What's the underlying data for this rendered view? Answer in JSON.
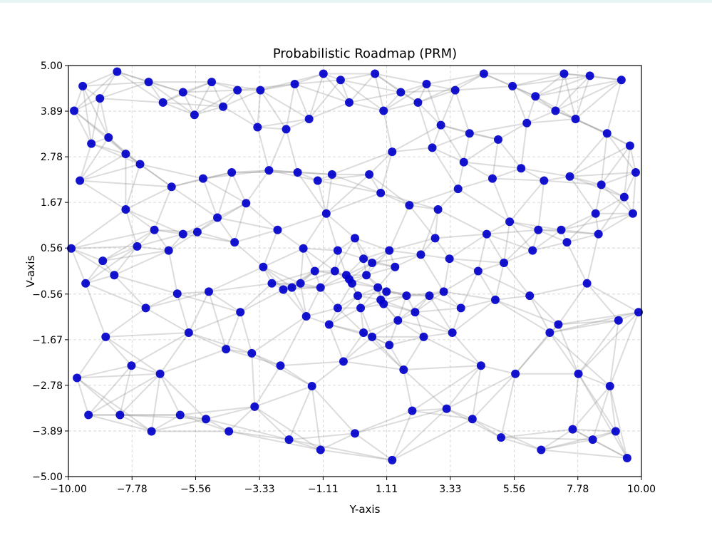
{
  "chart_data": {
    "type": "scatter",
    "title": "Probabilistic Roadmap (PRM)",
    "xlabel": "Y-axis",
    "ylabel": "V-axis",
    "xlim": [
      -10,
      10
    ],
    "ylim": [
      -5,
      5
    ],
    "xticks": [
      -10.0,
      -7.78,
      -5.56,
      -3.33,
      -1.11,
      1.11,
      3.33,
      5.56,
      7.78,
      10.0
    ],
    "yticks": [
      -5.0,
      -3.89,
      -2.78,
      -1.67,
      -0.56,
      0.56,
      1.67,
      2.78,
      3.89,
      5.0
    ],
    "xtick_labels": [
      "−10.00",
      "−7.78",
      "−5.56",
      "−3.33",
      "−1.11",
      "1.11",
      "3.33",
      "5.56",
      "7.78",
      "10.00"
    ],
    "ytick_labels": [
      "−5.00",
      "−3.89",
      "−2.78",
      "−1.67",
      "−0.56",
      "0.56",
      "1.67",
      "2.78",
      "3.89",
      "5.00"
    ],
    "grid": true,
    "colors": {
      "nodes": "#0000cc",
      "edges": "#808080"
    },
    "series": [
      {
        "x": [
          -9.5,
          -8.3,
          -7.2,
          -6.0,
          -5.0,
          -4.1,
          -3.3,
          -2.1,
          -1.1,
          -0.5,
          0.7,
          1.6,
          2.5,
          3.5,
          4.5,
          5.5,
          6.3,
          7.3,
          8.2,
          9.3,
          -9.8,
          -8.9,
          -8.0,
          -6.7,
          -5.6,
          -4.6,
          -3.4,
          -2.4,
          -1.6,
          -0.2,
          1.0,
          2.2,
          3.0,
          4.0,
          5.0,
          6.0,
          7.0,
          7.7,
          8.8,
          9.6,
          -9.2,
          -8.6,
          -7.5,
          -6.4,
          -5.3,
          -4.3,
          -3.0,
          -2.0,
          -1.3,
          -0.8,
          0.5,
          1.3,
          2.7,
          3.8,
          4.8,
          5.8,
          6.6,
          7.5,
          8.6,
          9.8,
          -9.6,
          -8.0,
          -7.0,
          -6.0,
          -4.8,
          -3.8,
          -2.7,
          -1.8,
          -1.0,
          0.0,
          0.9,
          1.9,
          2.9,
          3.6,
          4.6,
          5.4,
          6.4,
          7.2,
          8.4,
          9.4,
          -9.9,
          -8.8,
          -7.6,
          -6.5,
          -5.5,
          -4.2,
          -3.2,
          -2.2,
          -1.4,
          -0.6,
          0.3,
          1.2,
          2.3,
          3.3,
          4.3,
          5.2,
          6.2,
          7.4,
          8.5,
          9.7,
          -9.4,
          -8.4,
          -7.3,
          -6.2,
          -5.1,
          -4.0,
          -2.9,
          -1.7,
          -0.9,
          0.2,
          1.5,
          2.6,
          3.7,
          4.9,
          6.1,
          7.1,
          8.1,
          9.2,
          -0.3,
          0.8,
          -9.7,
          -8.7,
          -7.8,
          -6.8,
          -5.8,
          -4.5,
          -3.6,
          -2.6,
          -1.5,
          -0.4,
          0.6,
          1.7,
          2.4,
          3.4,
          4.4,
          5.6,
          6.8,
          7.8,
          8.9,
          9.9,
          -0.7,
          -0.1,
          0.4,
          1.1,
          1.4,
          0.1,
          -0.2,
          0.6,
          1.0,
          -1.2,
          -0.6,
          0.9,
          1.8,
          2.1,
          -1.9,
          2.8,
          3.1,
          -2.5,
          0.3,
          1.2,
          -9.3,
          -8.2,
          -7.1,
          -6.1,
          -5.2,
          -4.4,
          -3.5,
          -2.3,
          -1.2,
          0.0,
          1.3,
          2.0,
          3.2,
          4.1,
          5.1,
          6.5,
          7.6,
          8.3,
          9.1,
          9.5
        ],
        "y": [
          4.5,
          4.85,
          4.6,
          4.35,
          4.6,
          4.4,
          4.4,
          4.55,
          4.8,
          4.65,
          4.8,
          4.35,
          4.55,
          4.4,
          4.8,
          4.5,
          4.25,
          4.8,
          4.75,
          4.65,
          3.9,
          4.2,
          2.85,
          4.1,
          3.8,
          4.0,
          3.5,
          3.45,
          3.7,
          4.1,
          3.9,
          4.1,
          3.55,
          3.35,
          3.2,
          3.6,
          3.9,
          3.7,
          3.35,
          3.05,
          3.1,
          3.25,
          2.6,
          2.05,
          2.25,
          2.4,
          2.45,
          2.4,
          2.2,
          2.35,
          2.35,
          2.9,
          3.0,
          2.65,
          2.25,
          2.5,
          2.2,
          2.3,
          2.1,
          2.4,
          2.2,
          1.5,
          1.0,
          0.9,
          1.3,
          1.65,
          1.0,
          0.55,
          1.4,
          0.8,
          1.9,
          1.6,
          1.5,
          2.0,
          0.9,
          1.2,
          1.0,
          1.0,
          1.4,
          1.8,
          0.55,
          0.25,
          0.6,
          0.5,
          0.95,
          0.7,
          0.1,
          -0.4,
          0.0,
          0.5,
          0.3,
          0.5,
          0.4,
          0.3,
          0.0,
          0.2,
          0.5,
          0.7,
          0.9,
          1.4,
          -0.3,
          -0.1,
          -0.9,
          -0.55,
          -0.5,
          -1.0,
          -0.3,
          -1.1,
          -1.3,
          -0.9,
          -1.2,
          -0.6,
          -0.9,
          -0.7,
          -0.6,
          -1.3,
          -0.3,
          -1.2,
          -0.1,
          -0.4,
          -2.6,
          -1.6,
          -2.3,
          -2.5,
          -1.5,
          -1.9,
          -2.0,
          -2.3,
          -2.8,
          -2.2,
          -1.6,
          -2.4,
          -1.6,
          -1.5,
          -2.3,
          -2.5,
          -1.5,
          -2.5,
          -2.8,
          -1.0,
          0.0,
          -0.3,
          -0.1,
          -0.5,
          0.1,
          -0.6,
          -0.2,
          0.2,
          -0.8,
          -0.4,
          -0.9,
          -0.7,
          -0.6,
          -1.0,
          -0.3,
          0.8,
          -0.5,
          -0.45,
          -1.5,
          -1.8,
          -3.5,
          -3.5,
          -3.9,
          -3.5,
          -3.6,
          -3.9,
          -3.3,
          -4.1,
          -4.35,
          -3.95,
          -4.6,
          -3.4,
          -3.35,
          -3.6,
          -4.05,
          -4.35,
          -3.85,
          -4.1,
          -3.9,
          -4.55
        ]
      }
    ]
  }
}
